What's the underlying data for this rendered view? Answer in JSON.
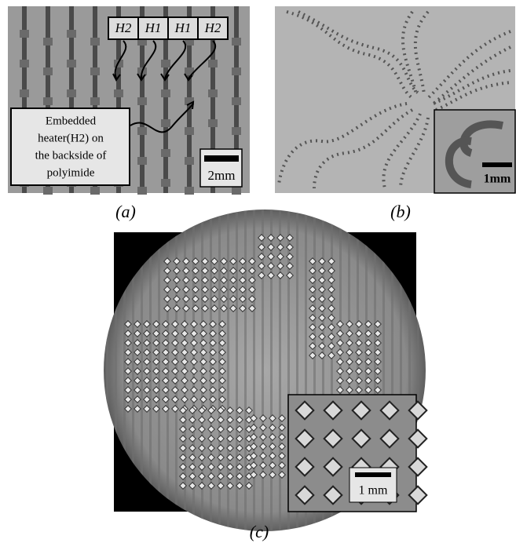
{
  "panels": [
    {
      "label": "(a)",
      "heater_labels": [
        "H2",
        "H1",
        "H1",
        "H2"
      ],
      "annotation": [
        "Embedded",
        "heater(H2) on",
        "the backside of",
        "polyimide"
      ],
      "scale_bar": "2mm"
    },
    {
      "label": "(b)",
      "scale_bar": "1mm"
    },
    {
      "label": "(c)",
      "scale_bar": "1 mm"
    }
  ]
}
